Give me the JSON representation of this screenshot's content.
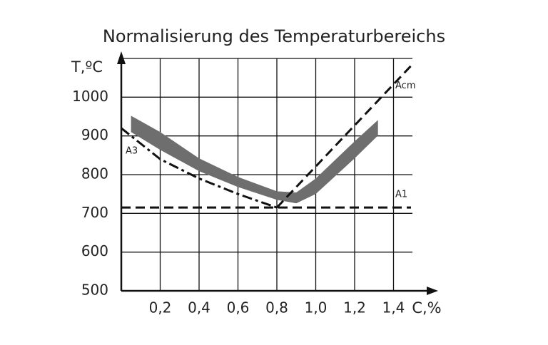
{
  "chart_data": {
    "type": "line",
    "title": "Normalisierung des Temperaturbereichs",
    "ylabel": "T,ºC",
    "xlabel": "C,%",
    "xlim": [
      0,
      1.6
    ],
    "ylim": [
      500,
      1100
    ],
    "xticks": [
      {
        "value": 0.2,
        "label": "0,2"
      },
      {
        "value": 0.4,
        "label": "0,4"
      },
      {
        "value": 0.6,
        "label": "0,6"
      },
      {
        "value": 0.8,
        "label": "0,8"
      },
      {
        "value": 1.0,
        "label": "1,0"
      },
      {
        "value": 1.2,
        "label": "1,2"
      },
      {
        "value": 1.4,
        "label": "1,4"
      }
    ],
    "yticks": [
      500,
      600,
      700,
      800,
      900,
      1000
    ],
    "grid": true,
    "series": [
      {
        "name": "A3",
        "color": "#111111",
        "x": [
          0,
          0.2,
          0.4,
          0.6,
          0.8
        ],
        "values": [
          920,
          840,
          790,
          750,
          715
        ]
      },
      {
        "name": "Acm",
        "color": "#111111",
        "x": [
          0.8,
          1.49
        ],
        "values": [
          715,
          1081
        ]
      },
      {
        "name": "A1",
        "color": "#111111",
        "x": [
          0,
          1.49
        ],
        "values": [
          715,
          715
        ]
      }
    ],
    "band": {
      "color": "#6e6e6e",
      "x": [
        0.05,
        0.2,
        0.4,
        0.6,
        0.8,
        0.9,
        1.0,
        1.2,
        1.32
      ],
      "upper": [
        952,
        910,
        842,
        794,
        757,
        754,
        790,
        886,
        941
      ],
      "lower": [
        910,
        864,
        809,
        768,
        735,
        726,
        750,
        842,
        901
      ]
    }
  }
}
